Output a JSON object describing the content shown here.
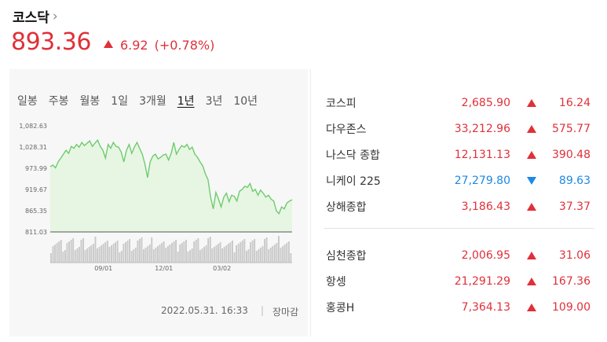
{
  "header": {
    "title": "코스닥",
    "chevron": "›",
    "price": "893.36",
    "change": "6.92",
    "rate": "(+0.78%)"
  },
  "tabs": [
    "일봉",
    "주봉",
    "월봉",
    "1일",
    "3개월",
    "1년",
    "3년",
    "10년"
  ],
  "active_tab": "1년",
  "chart_data": {
    "type": "line",
    "series": [
      {
        "values": [
          978,
          982,
          975,
          990,
          1000,
          1010,
          1020,
          1012,
          1030,
          1025,
          1035,
          1028,
          1040,
          1032,
          1038,
          1044,
          1030,
          1038,
          1046,
          1030,
          1020,
          1000,
          1035,
          1025,
          1040,
          1030,
          1028,
          1015,
          990,
          1020,
          1035,
          1012,
          1028,
          1040,
          1025,
          1010,
          985,
          950,
          990,
          1005,
          1010,
          998,
          1002,
          1008,
          1010,
          995,
          1012,
          1040,
          1010,
          1022,
          1032,
          1028,
          1035,
          1022,
          1028,
          1010,
          1002,
          990,
          980,
          960,
          945,
          900,
          870,
          912,
          895,
          875,
          900,
          910,
          888,
          905,
          902,
          890,
          915,
          920,
          928,
          925,
          935,
          915,
          920,
          905,
          918,
          910,
          900,
          905,
          895,
          890,
          865,
          858,
          875,
          870,
          885,
          890,
          893.36
        ]
      }
    ],
    "y_ticks": [
      "1,082.63",
      "1,028.31",
      "973.99",
      "919.67",
      "865.35",
      "811.03"
    ],
    "ylim": [
      811.03,
      1082.63
    ],
    "x_ticks": [
      "09/01",
      "12/01",
      "03/02"
    ],
    "line_color": "#6dcc6d",
    "fill_color": "#e7f6e3"
  },
  "footer": {
    "timestamp": "2022.05.31. 16:33",
    "separator": "|",
    "status": "장마감"
  },
  "indices_top": [
    {
      "name": "코스피",
      "value": "2,685.90",
      "dir": "up",
      "change": "16.24"
    },
    {
      "name": "다우존스",
      "value": "33,212.96",
      "dir": "up",
      "change": "575.77"
    },
    {
      "name": "나스닥 종합",
      "value": "12,131.13",
      "dir": "up",
      "change": "390.48"
    },
    {
      "name": "니케이 225",
      "value": "27,279.80",
      "dir": "down",
      "change": "89.63"
    },
    {
      "name": "상해종합",
      "value": "3,186.43",
      "dir": "up",
      "change": "37.37"
    }
  ],
  "indices_bottom": [
    {
      "name": "심천종합",
      "value": "2,006.95",
      "dir": "up",
      "change": "31.06"
    },
    {
      "name": "항셍",
      "value": "21,291.29",
      "dir": "up",
      "change": "167.36"
    },
    {
      "name": "홍콩H",
      "value": "7,364.13",
      "dir": "up",
      "change": "109.00"
    }
  ]
}
